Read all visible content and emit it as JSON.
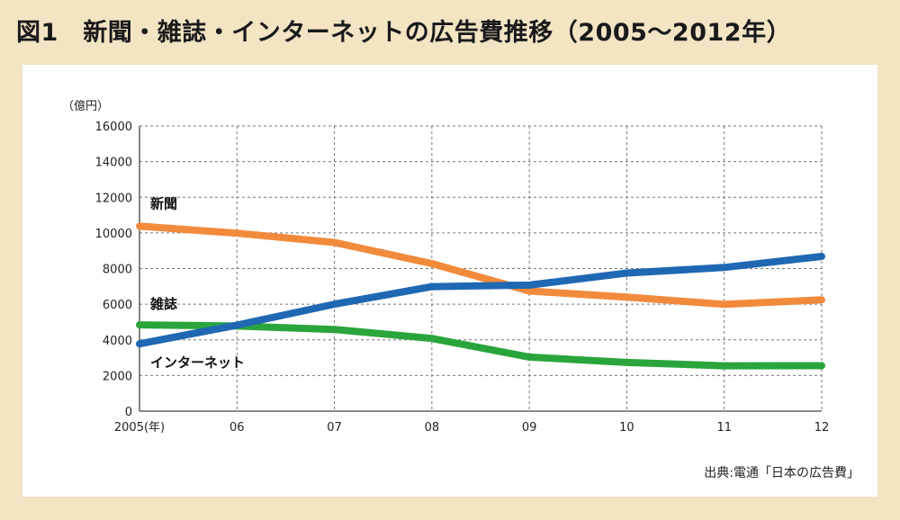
{
  "title": "図1　新聞・雑誌・インターネットの広告費推移（2005〜2012年）",
  "source_note": "出典:電通「日本の広告費」",
  "chart_data": {
    "type": "line",
    "ylabel": "（億円）",
    "xlabel": "",
    "x_tick_labels": [
      "2005(年)",
      "06",
      "07",
      "08",
      "09",
      "10",
      "11",
      "12"
    ],
    "ylim": [
      0,
      16000
    ],
    "y_ticks": [
      0,
      2000,
      4000,
      6000,
      8000,
      10000,
      12000,
      14000,
      16000
    ],
    "grid": true,
    "series": [
      {
        "name": "新聞",
        "color": "#f28a3c",
        "values": [
          10377,
          9986,
          9462,
          8276,
          6739,
          6396,
          5990,
          6242
        ]
      },
      {
        "name": "雑誌",
        "color": "#2aa53c",
        "values": [
          4842,
          4777,
          4585,
          4078,
          3034,
          2733,
          2542,
          2551
        ]
      },
      {
        "name": "インターネット",
        "color": "#1f68b3",
        "values": [
          3777,
          4826,
          6003,
          6983,
          7069,
          7747,
          8062,
          8680
        ]
      }
    ]
  }
}
